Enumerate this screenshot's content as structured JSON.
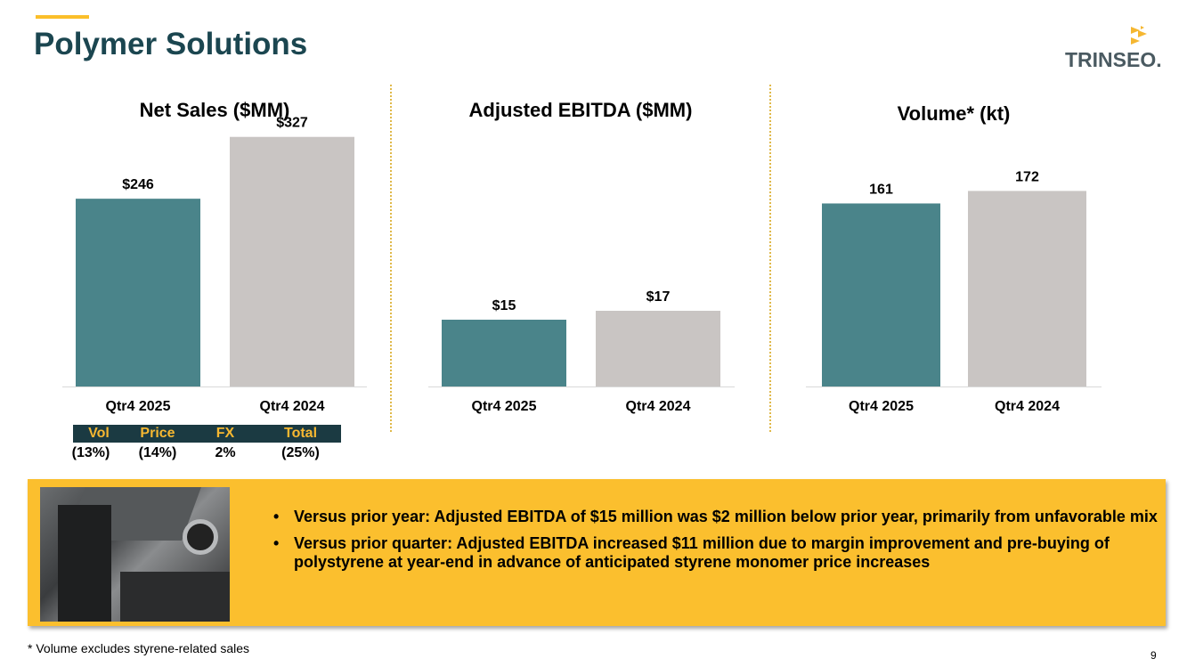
{
  "page": {
    "title": "Polymer Solutions",
    "logo_text": "TRINSEO.",
    "footnote": "* Volume excludes styrene-related sales",
    "page_number": "9"
  },
  "colors": {
    "accent": "#fbbf2a",
    "title": "#1b4650",
    "bar_current": "#4a848a",
    "bar_prior": "#c9c5c3",
    "callout_bg": "#fbbf2e"
  },
  "chart_data": [
    {
      "type": "bar",
      "title": "Net Sales ($MM)",
      "categories": [
        "Qtr4 2025",
        "Qtr4 2024"
      ],
      "values": [
        246,
        327
      ],
      "labels": [
        "$246",
        "$327"
      ],
      "xlabel": "",
      "ylabel": "",
      "ylim": [
        0,
        350
      ]
    },
    {
      "type": "bar",
      "title": "Adjusted EBITDA ($MM)",
      "categories": [
        "Qtr4 2025",
        "Qtr4 2024"
      ],
      "values": [
        15,
        17
      ],
      "labels": [
        "$15",
        "$17"
      ],
      "xlabel": "",
      "ylabel": "",
      "ylim": [
        0,
        60
      ]
    },
    {
      "type": "bar",
      "title": "Volume* (kt)",
      "categories": [
        "Qtr4 2025",
        "Qtr4 2024"
      ],
      "values": [
        161,
        172
      ],
      "labels": [
        "161",
        "172"
      ],
      "xlabel": "",
      "ylabel": "",
      "ylim": [
        0,
        235
      ]
    }
  ],
  "breakdown": {
    "headers": [
      "Vol",
      "Price",
      "FX",
      "Total"
    ],
    "values": [
      "(13%)",
      "(14%)",
      "2%",
      "(25%)"
    ]
  },
  "callout": {
    "bullets": [
      "Versus prior year: Adjusted EBITDA of $15 million was $2 million below prior year, primarily from unfavorable mix",
      "Versus prior quarter: Adjusted EBITDA increased $11 million due to margin improvement and pre-buying of polystyrene at year-end in advance of anticipated styrene monomer price increases"
    ]
  }
}
